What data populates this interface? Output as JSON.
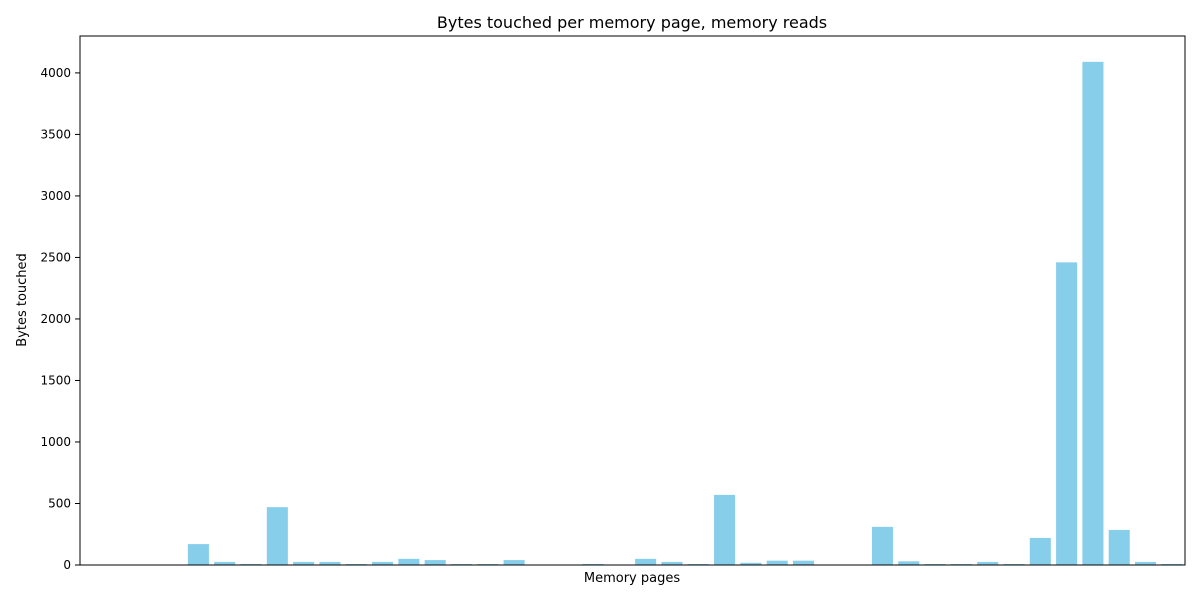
{
  "chart_data": {
    "type": "bar",
    "title": "Bytes touched per memory page, memory reads",
    "xlabel": "Memory pages",
    "ylabel": "Bytes touched",
    "ylim": [
      0,
      4300
    ],
    "yticks": [
      0,
      500,
      1000,
      1500,
      2000,
      2500,
      3000,
      3500,
      4000
    ],
    "grid": false,
    "bar_color": "#87CEEB",
    "values": [
      0,
      0,
      0,
      0,
      170,
      25,
      8,
      470,
      25,
      25,
      8,
      25,
      50,
      40,
      8,
      8,
      40,
      0,
      0,
      8,
      0,
      50,
      25,
      8,
      570,
      18,
      35,
      35,
      0,
      0,
      310,
      30,
      8,
      8,
      25,
      8,
      220,
      2460,
      4090,
      285,
      25,
      8
    ]
  }
}
